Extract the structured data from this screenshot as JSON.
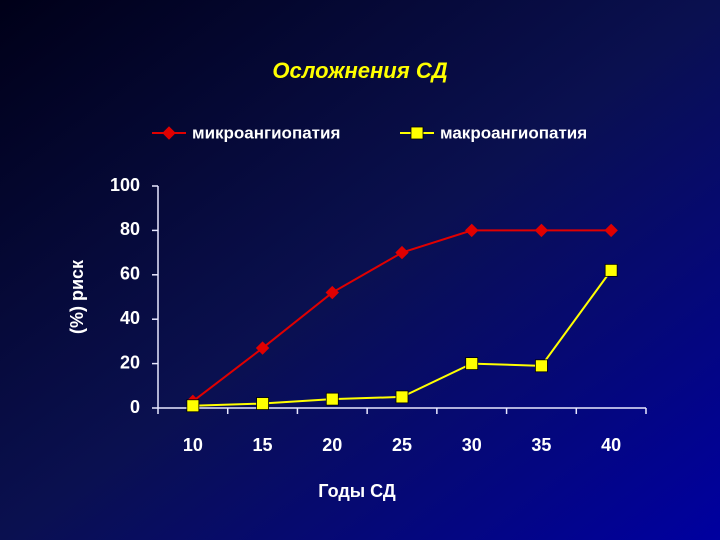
{
  "chart_data": {
    "type": "line",
    "title": "Осложнения СД",
    "x_label": "Годы СД",
    "y_label": "(%) риск",
    "categories": [
      "10",
      "15",
      "20",
      "25",
      "30",
      "35",
      "40"
    ],
    "series": [
      {
        "name": "микроангиопатия",
        "color": "#e00000",
        "marker": "diamond",
        "values": [
          3,
          27,
          52,
          70,
          80,
          80,
          80
        ]
      },
      {
        "name": "макроангиопатия",
        "color": "#ffff00",
        "marker": "square",
        "values": [
          1,
          2,
          4,
          5,
          20,
          19,
          62
        ]
      }
    ],
    "ylim": [
      0,
      100
    ],
    "yticks": [
      0,
      20,
      40,
      60,
      80,
      100
    ],
    "legend": "top"
  }
}
